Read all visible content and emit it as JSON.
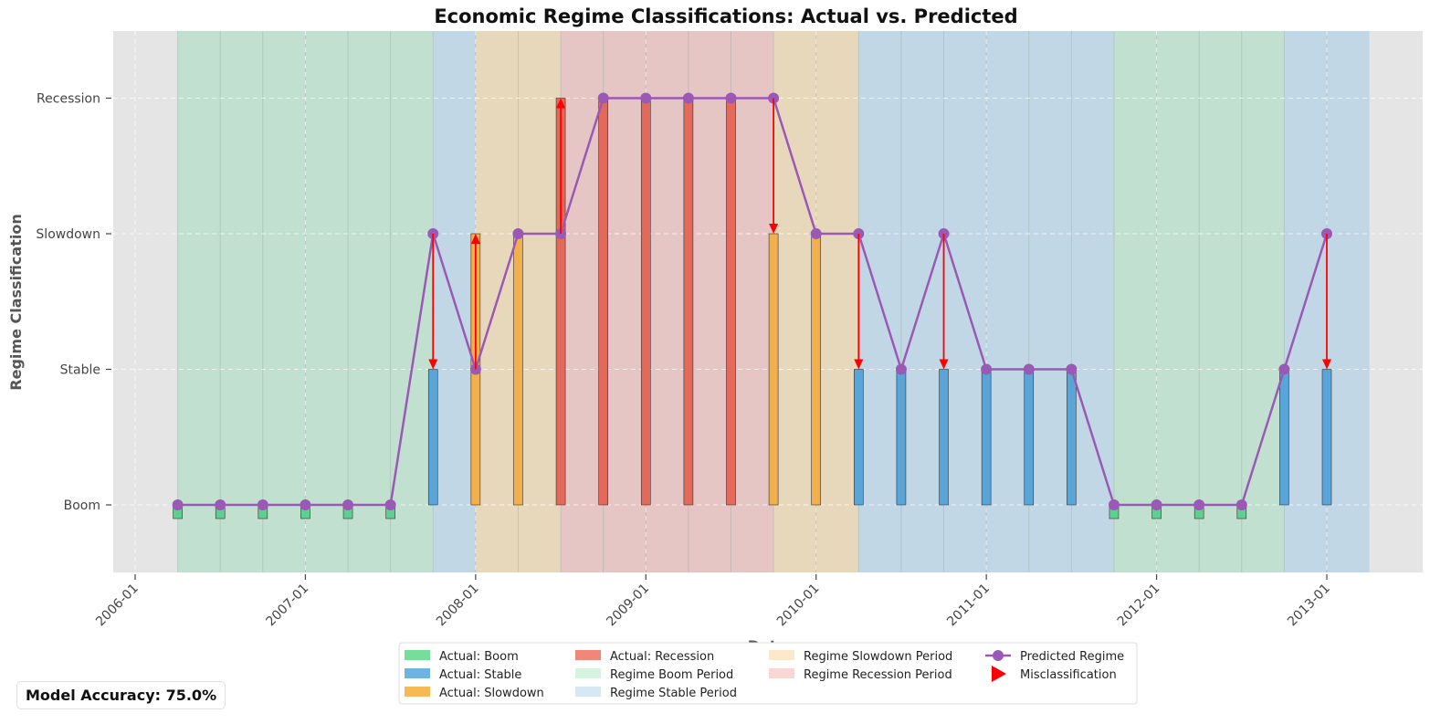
{
  "chart_data": {
    "type": "bar",
    "title": "Economic Regime Classifications: Actual vs. Predicted",
    "xlabel": "Date",
    "ylabel": "Regime Classification",
    "categories": [
      "Boom",
      "Stable",
      "Slowdown",
      "Recession"
    ],
    "x_ticks": [
      "2006-01",
      "2007-01",
      "2008-01",
      "2009-01",
      "2010-01",
      "2011-01",
      "2012-01",
      "2013-01"
    ],
    "dates": [
      "2006-04",
      "2006-07",
      "2006-10",
      "2007-01",
      "2007-04",
      "2007-07",
      "2007-10",
      "2008-01",
      "2008-04",
      "2008-07",
      "2008-10",
      "2009-01",
      "2009-04",
      "2009-07",
      "2009-10",
      "2010-01",
      "2010-04",
      "2010-07",
      "2010-10",
      "2011-01",
      "2011-04",
      "2011-07",
      "2011-10",
      "2012-01",
      "2012-04",
      "2012-07",
      "2012-10",
      "2013-01"
    ],
    "actual": [
      "Boom",
      "Boom",
      "Boom",
      "Boom",
      "Boom",
      "Boom",
      "Stable",
      "Slowdown",
      "Slowdown",
      "Recession",
      "Recession",
      "Recession",
      "Recession",
      "Recession",
      "Slowdown",
      "Slowdown",
      "Stable",
      "Stable",
      "Stable",
      "Stable",
      "Stable",
      "Stable",
      "Boom",
      "Boom",
      "Boom",
      "Boom",
      "Stable",
      "Stable"
    ],
    "predicted": [
      "Boom",
      "Boom",
      "Boom",
      "Boom",
      "Boom",
      "Boom",
      "Slowdown",
      "Stable",
      "Slowdown",
      "Slowdown",
      "Recession",
      "Recession",
      "Recession",
      "Recession",
      "Recession",
      "Slowdown",
      "Slowdown",
      "Stable",
      "Slowdown",
      "Stable",
      "Stable",
      "Stable",
      "Boom",
      "Boom",
      "Boom",
      "Boom",
      "Stable",
      "Slowdown"
    ],
    "regime_periods": [
      {
        "regime": "Boom",
        "start": "2006-04",
        "end": "2007-10"
      },
      {
        "regime": "Stable",
        "start": "2007-10",
        "end": "2008-01"
      },
      {
        "regime": "Slowdown",
        "start": "2008-01",
        "end": "2008-07"
      },
      {
        "regime": "Recession",
        "start": "2008-07",
        "end": "2009-10"
      },
      {
        "regime": "Slowdown",
        "start": "2009-10",
        "end": "2010-04"
      },
      {
        "regime": "Stable",
        "start": "2010-04",
        "end": "2011-10"
      },
      {
        "regime": "Boom",
        "start": "2011-10",
        "end": "2012-10"
      },
      {
        "regime": "Stable",
        "start": "2012-10",
        "end": "2013-04"
      }
    ],
    "colors": {
      "Boom": "#5cd08c",
      "Stable": "#5aa5d8",
      "Slowdown": "#f2b04c",
      "Recession": "#e36a5a",
      "predicted": "#9b59b6",
      "misclassification": "#ff0000",
      "band_Boom": "#c2e0d0",
      "band_Stable": "#c2d7e5",
      "band_Slowdown": "#e8d8bb",
      "band_Recession": "#e6c5c5",
      "background": "#e5e5e5"
    },
    "grid": true,
    "legend_placement": "bottom-center",
    "legend": [
      {
        "label": "Actual: Boom",
        "kind": "patch",
        "color": "#77dd9b"
      },
      {
        "label": "Actual: Stable",
        "kind": "patch",
        "color": "#6fb3e0"
      },
      {
        "label": "Actual: Slowdown",
        "kind": "patch",
        "color": "#f5b955"
      },
      {
        "label": "Actual: Recession",
        "kind": "patch",
        "color": "#f0877a"
      },
      {
        "label": "Regime Boom Period",
        "kind": "patch",
        "color": "#d4f3e1"
      },
      {
        "label": "Regime Stable Period",
        "kind": "patch",
        "color": "#d6e8f5"
      },
      {
        "label": "Regime Slowdown Period",
        "kind": "patch",
        "color": "#fce9cc"
      },
      {
        "label": "Regime Recession Period",
        "kind": "patch",
        "color": "#f9d7d4"
      },
      {
        "label": "Predicted Regime",
        "kind": "line",
        "color": "#9b59b6"
      },
      {
        "label": "Misclassification",
        "kind": "arrow",
        "color": "#ff0000"
      }
    ],
    "accuracy_text": "Model Accuracy: 75.0%"
  }
}
